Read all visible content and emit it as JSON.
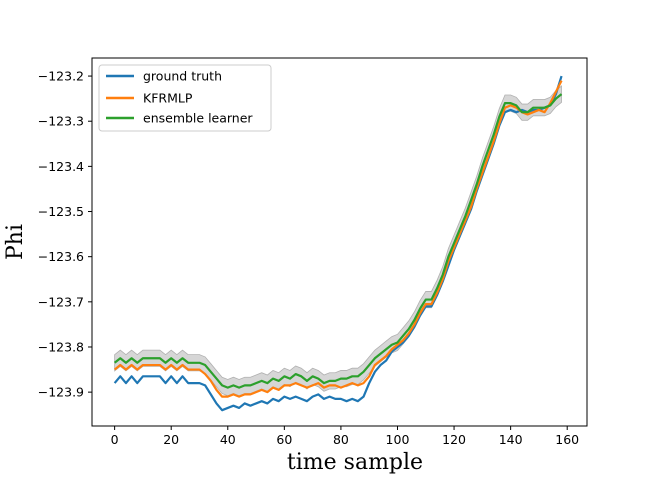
{
  "chart_data": {
    "type": "line",
    "title": "",
    "xlabel": "time sample",
    "ylabel": "Phi",
    "xlim": [
      -8,
      167
    ],
    "ylim": [
      -123.975,
      -123.16
    ],
    "x_ticks": [
      0,
      20,
      40,
      60,
      80,
      100,
      120,
      140,
      160
    ],
    "x_tick_labels": [
      "0",
      "20",
      "40",
      "60",
      "80",
      "100",
      "120",
      "140",
      "160"
    ],
    "y_ticks": [
      -123.9,
      -123.8,
      -123.7,
      -123.6,
      -123.5,
      -123.4,
      -123.3,
      -123.2
    ],
    "y_tick_labels": [
      "−123.9",
      "−123.8",
      "−123.7",
      "−123.6",
      "−123.5",
      "−123.4",
      "−123.3",
      "−123.2"
    ],
    "grid": false,
    "legend_position": "top-left",
    "band": {
      "color": "#c8c8c8",
      "half_width": 0.018,
      "around_series": "ensemble learner"
    },
    "x": [
      0,
      2,
      4,
      6,
      8,
      10,
      12,
      14,
      16,
      18,
      20,
      22,
      24,
      26,
      28,
      30,
      32,
      34,
      36,
      38,
      40,
      42,
      44,
      46,
      48,
      50,
      52,
      54,
      56,
      58,
      60,
      62,
      64,
      66,
      68,
      70,
      72,
      74,
      76,
      78,
      80,
      82,
      84,
      86,
      88,
      90,
      92,
      94,
      96,
      98,
      100,
      102,
      104,
      106,
      108,
      110,
      112,
      114,
      116,
      118,
      120,
      122,
      124,
      126,
      128,
      130,
      132,
      134,
      136,
      138,
      140,
      142,
      144,
      146,
      148,
      150,
      152,
      154,
      156,
      158
    ],
    "series": [
      {
        "name": "ground truth",
        "color": "#1f77b4",
        "values": [
          -123.88,
          -123.865,
          -123.88,
          -123.865,
          -123.88,
          -123.865,
          -123.865,
          -123.865,
          -123.865,
          -123.88,
          -123.865,
          -123.88,
          -123.865,
          -123.88,
          -123.88,
          -123.88,
          -123.885,
          -123.905,
          -123.925,
          -123.94,
          -123.935,
          -123.93,
          -123.935,
          -123.925,
          -123.93,
          -123.925,
          -123.92,
          -123.925,
          -123.915,
          -123.92,
          -123.91,
          -123.915,
          -123.91,
          -123.915,
          -123.92,
          -123.91,
          -123.905,
          -123.915,
          -123.91,
          -123.915,
          -123.915,
          -123.92,
          -123.915,
          -123.92,
          -123.91,
          -123.88,
          -123.855,
          -123.84,
          -123.83,
          -123.81,
          -123.8,
          -123.79,
          -123.775,
          -123.755,
          -123.73,
          -123.71,
          -123.71,
          -123.685,
          -123.655,
          -123.62,
          -123.585,
          -123.555,
          -123.525,
          -123.495,
          -123.455,
          -123.42,
          -123.385,
          -123.35,
          -123.31,
          -123.28,
          -123.275,
          -123.28,
          -123.275,
          -123.28,
          -123.275,
          -123.275,
          -123.27,
          -123.265,
          -123.24,
          -123.2
        ]
      },
      {
        "name": "KFRMLP",
        "color": "#ff7f0e",
        "values": [
          -123.85,
          -123.84,
          -123.85,
          -123.84,
          -123.85,
          -123.84,
          -123.84,
          -123.84,
          -123.84,
          -123.85,
          -123.84,
          -123.85,
          -123.84,
          -123.85,
          -123.85,
          -123.85,
          -123.86,
          -123.875,
          -123.895,
          -123.91,
          -123.91,
          -123.905,
          -123.91,
          -123.905,
          -123.905,
          -123.9,
          -123.895,
          -123.9,
          -123.89,
          -123.895,
          -123.885,
          -123.885,
          -123.88,
          -123.885,
          -123.89,
          -123.885,
          -123.88,
          -123.89,
          -123.885,
          -123.885,
          -123.89,
          -123.885,
          -123.88,
          -123.885,
          -123.88,
          -123.865,
          -123.84,
          -123.83,
          -123.82,
          -123.805,
          -123.795,
          -123.785,
          -123.77,
          -123.75,
          -123.725,
          -123.705,
          -123.705,
          -123.68,
          -123.65,
          -123.61,
          -123.58,
          -123.55,
          -123.52,
          -123.49,
          -123.45,
          -123.415,
          -123.38,
          -123.345,
          -123.305,
          -123.27,
          -123.265,
          -123.27,
          -123.28,
          -123.285,
          -123.28,
          -123.275,
          -123.28,
          -123.26,
          -123.235,
          -123.21
        ]
      },
      {
        "name": "ensemble learner",
        "color": "#2ca02c",
        "values": [
          -123.835,
          -123.825,
          -123.835,
          -123.825,
          -123.835,
          -123.825,
          -123.825,
          -123.825,
          -123.825,
          -123.835,
          -123.825,
          -123.835,
          -123.825,
          -123.835,
          -123.835,
          -123.835,
          -123.84,
          -123.855,
          -123.87,
          -123.885,
          -123.89,
          -123.885,
          -123.89,
          -123.885,
          -123.885,
          -123.88,
          -123.875,
          -123.88,
          -123.87,
          -123.875,
          -123.865,
          -123.87,
          -123.86,
          -123.865,
          -123.875,
          -123.865,
          -123.87,
          -123.88,
          -123.875,
          -123.875,
          -123.87,
          -123.87,
          -123.865,
          -123.865,
          -123.855,
          -123.84,
          -123.825,
          -123.815,
          -123.805,
          -123.795,
          -123.79,
          -123.775,
          -123.76,
          -123.74,
          -123.715,
          -123.695,
          -123.695,
          -123.67,
          -123.64,
          -123.6,
          -123.57,
          -123.54,
          -123.51,
          -123.475,
          -123.44,
          -123.4,
          -123.365,
          -123.33,
          -123.29,
          -123.26,
          -123.26,
          -123.265,
          -123.28,
          -123.28,
          -123.27,
          -123.27,
          -123.27,
          -123.265,
          -123.25,
          -123.24
        ]
      }
    ]
  }
}
